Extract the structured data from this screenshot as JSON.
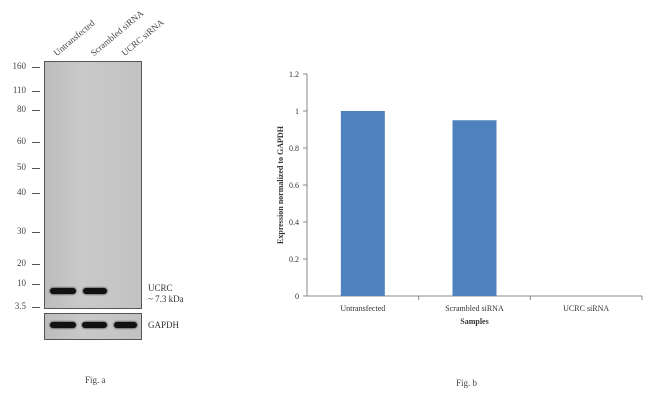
{
  "western_blot": {
    "lanes": [
      "Untransfected",
      "Scrambled siRNA",
      "UCRC siRNA"
    ],
    "markers_kda": [
      "160",
      "110",
      "80",
      "60",
      "50",
      "40",
      "30",
      "20",
      "10",
      "3.5"
    ],
    "target_label": "UCRC",
    "target_size": "~ 7.3 kDa",
    "loading_control": "GAPDH",
    "caption": "Fig. a"
  },
  "chart_data": {
    "type": "bar",
    "categories": [
      "Untransfected",
      "Scrambled siRNA",
      "UCRC siRNA"
    ],
    "values": [
      1.0,
      0.95,
      0.0
    ],
    "xlabel": "Samples",
    "ylabel": "Expression normalized to GAPDH",
    "ylim": [
      0,
      1.2
    ],
    "yticks": [
      0,
      0.2,
      0.4,
      0.6,
      0.8,
      1,
      1.2
    ],
    "grid": false,
    "bar_color": "#4f81bd",
    "caption": "Fig. b"
  }
}
